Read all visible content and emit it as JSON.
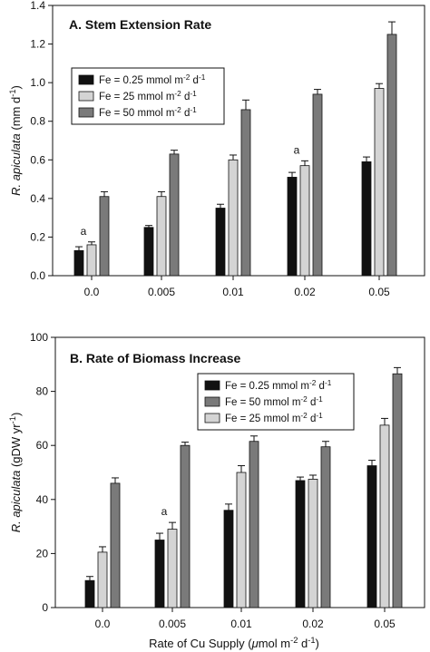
{
  "figure": {
    "shared_xlabel": "Rate of Cu Supply (μmol m⁻² d⁻¹)"
  },
  "chart_data": [
    {
      "type": "bar",
      "title": "A. Stem Extension Rate",
      "xlabel": "",
      "ylabel": "R. apiculata (mm d⁻¹)",
      "categories": [
        "0.0",
        "0.005",
        "0.01",
        "0.02",
        "0.05"
      ],
      "ylim": [
        0,
        1.4
      ],
      "yticks": [
        "0.0",
        "0.2",
        "0.4",
        "0.6",
        "0.8",
        "1.0",
        "1.2",
        "1.4"
      ],
      "legend_position": "upper-left",
      "series": [
        {
          "name": "Fe = 0.25 mmol m⁻² d⁻¹",
          "color": "#111111",
          "values": [
            0.13,
            0.25,
            0.35,
            0.51,
            0.59
          ],
          "errors": [
            0.02,
            0.01,
            0.02,
            0.025,
            0.025
          ]
        },
        {
          "name": "Fe = 25 mmol m⁻² d⁻¹",
          "color": "#d4d4d4",
          "values": [
            0.16,
            0.41,
            0.6,
            0.57,
            0.97
          ],
          "errors": [
            0.015,
            0.025,
            0.025,
            0.025,
            0.025
          ]
        },
        {
          "name": "Fe = 50 mmol m⁻² d⁻¹",
          "color": "#7a7a7a",
          "values": [
            0.41,
            0.63,
            0.86,
            0.94,
            1.25
          ],
          "errors": [
            0.025,
            0.02,
            0.05,
            0.025,
            0.065
          ]
        }
      ],
      "annotations": [
        {
          "text": "a",
          "category": "0.0"
        },
        {
          "text": "a",
          "category": "0.02"
        }
      ]
    },
    {
      "type": "bar",
      "title": "B. Rate of Biomass Increase",
      "xlabel": "Rate of Cu Supply (μmol m⁻² d⁻¹)",
      "ylabel": "R. apiculata (gDW yr⁻¹)",
      "categories": [
        "0.0",
        "0.005",
        "0.01",
        "0.02",
        "0.05"
      ],
      "ylim": [
        0,
        100
      ],
      "yticks": [
        "0",
        "20",
        "40",
        "60",
        "80",
        "100"
      ],
      "legend_position": "upper-right",
      "series": [
        {
          "name": "Fe = 0.25 mmol m⁻² d⁻¹",
          "color": "#111111",
          "values": [
            10,
            25,
            36,
            47,
            52.5
          ],
          "errors": [
            1.5,
            2.5,
            2.3,
            1.3,
            2
          ]
        },
        {
          "name": "Fe = 25 mmol m⁻² d⁻¹",
          "color": "#d4d4d4",
          "values": [
            20.5,
            29,
            50,
            47.5,
            67.5
          ],
          "errors": [
            2,
            2.5,
            2.5,
            1.5,
            2.5
          ]
        },
        {
          "name": "Fe = 50 mmol m⁻² d⁻¹",
          "color": "#7a7a7a",
          "values": [
            46,
            60,
            61.5,
            59.5,
            86.5
          ],
          "errors": [
            2,
            1.2,
            2,
            2,
            2.3
          ]
        }
      ],
      "legend_order": [
        0,
        2,
        1
      ],
      "annotations": [
        {
          "text": "a",
          "category": "0.005"
        }
      ]
    }
  ]
}
